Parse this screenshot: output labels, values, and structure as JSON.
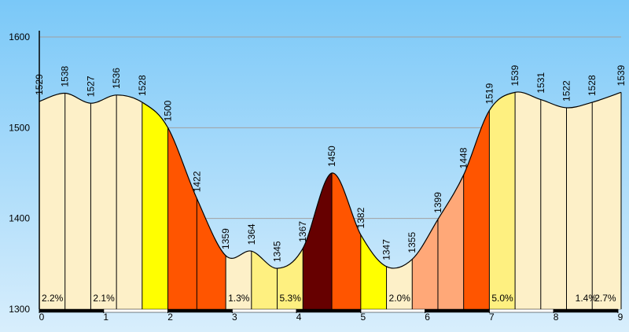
{
  "chart_data": {
    "type": "area",
    "title": "",
    "xlabel": "",
    "ylabel": "",
    "xlim": [
      0,
      9.05
    ],
    "ylim": [
      1300,
      1600
    ],
    "y_ticks": [
      "1300",
      "1400",
      "1500",
      "1600"
    ],
    "x_ticks": [
      "0",
      "1",
      "2",
      "3",
      "4",
      "5",
      "6",
      "7",
      "8",
      "9"
    ],
    "grid": "horizontal",
    "colors": {
      "background_top": "#7ac8f8",
      "background_bottom": "#d8eefc",
      "grid": "#a0a0a0",
      "line": "#000000",
      "easy": "#fdf0c8",
      "light": "#fef080",
      "mild": "#ffff00",
      "moderate": "#ffa878",
      "steep": "#ff5500",
      "very_steep": "#660000"
    },
    "points": [
      {
        "x": 0.0,
        "y": 1529,
        "label": "1529"
      },
      {
        "x": 0.4,
        "y": 1538,
        "label": "1538"
      },
      {
        "x": 0.8,
        "y": 1527,
        "label": "1527"
      },
      {
        "x": 1.2,
        "y": 1536,
        "label": "1536"
      },
      {
        "x": 1.6,
        "y": 1528,
        "label": "1528"
      },
      {
        "x": 2.0,
        "y": 1500,
        "label": "1500"
      },
      {
        "x": 2.45,
        "y": 1422,
        "label": "1422"
      },
      {
        "x": 2.9,
        "y": 1359,
        "label": "1359"
      },
      {
        "x": 3.3,
        "y": 1364,
        "label": "1364"
      },
      {
        "x": 3.7,
        "y": 1345,
        "label": "1345"
      },
      {
        "x": 4.1,
        "y": 1367,
        "label": "1367"
      },
      {
        "x": 4.55,
        "y": 1450,
        "label": "1450"
      },
      {
        "x": 5.0,
        "y": 1382,
        "label": "1382"
      },
      {
        "x": 5.4,
        "y": 1347,
        "label": "1347"
      },
      {
        "x": 5.8,
        "y": 1355,
        "label": "1355"
      },
      {
        "x": 6.2,
        "y": 1399,
        "label": "1399"
      },
      {
        "x": 6.6,
        "y": 1448,
        "label": "1448"
      },
      {
        "x": 7.0,
        "y": 1519,
        "label": "1519"
      },
      {
        "x": 7.4,
        "y": 1539,
        "label": "1539"
      },
      {
        "x": 7.8,
        "y": 1531,
        "label": "1531"
      },
      {
        "x": 8.2,
        "y": 1522,
        "label": "1522"
      },
      {
        "x": 8.6,
        "y": 1528,
        "label": "1528"
      },
      {
        "x": 9.05,
        "y": 1539,
        "label": "1539"
      }
    ],
    "segments": [
      {
        "from": 0.0,
        "to": 0.4,
        "color": "easy"
      },
      {
        "from": 0.4,
        "to": 0.8,
        "color": "easy"
      },
      {
        "from": 0.8,
        "to": 1.2,
        "color": "easy"
      },
      {
        "from": 1.2,
        "to": 1.6,
        "color": "easy"
      },
      {
        "from": 1.6,
        "to": 2.0,
        "color": "mild"
      },
      {
        "from": 2.0,
        "to": 2.45,
        "color": "steep"
      },
      {
        "from": 2.45,
        "to": 2.9,
        "color": "steep"
      },
      {
        "from": 2.9,
        "to": 3.3,
        "color": "easy"
      },
      {
        "from": 3.3,
        "to": 3.7,
        "color": "light"
      },
      {
        "from": 3.7,
        "to": 4.1,
        "color": "light"
      },
      {
        "from": 4.1,
        "to": 4.55,
        "color": "very_steep"
      },
      {
        "from": 4.55,
        "to": 5.0,
        "color": "steep"
      },
      {
        "from": 5.0,
        "to": 5.4,
        "color": "mild"
      },
      {
        "from": 5.4,
        "to": 5.8,
        "color": "easy"
      },
      {
        "from": 5.8,
        "to": 6.2,
        "color": "moderate"
      },
      {
        "from": 6.2,
        "to": 6.6,
        "color": "moderate"
      },
      {
        "from": 6.6,
        "to": 7.0,
        "color": "steep"
      },
      {
        "from": 7.0,
        "to": 7.4,
        "color": "light"
      },
      {
        "from": 7.4,
        "to": 7.8,
        "color": "easy"
      },
      {
        "from": 7.8,
        "to": 8.2,
        "color": "easy"
      },
      {
        "from": 8.2,
        "to": 8.6,
        "color": "easy"
      },
      {
        "from": 8.6,
        "to": 9.05,
        "color": "easy"
      }
    ],
    "grade_labels": [
      {
        "x": 0.0,
        "text": "2.2%"
      },
      {
        "x": 0.8,
        "text": "2.1%"
      },
      {
        "x": 2.9,
        "text": "1.3%"
      },
      {
        "x": 3.7,
        "text": "5.3%"
      },
      {
        "x": 5.4,
        "text": "2.0%"
      },
      {
        "x": 7.0,
        "text": "5.0%"
      },
      {
        "x": 8.3,
        "text": "1.4%"
      },
      {
        "x": 8.6,
        "text": "2.7%"
      }
    ]
  }
}
